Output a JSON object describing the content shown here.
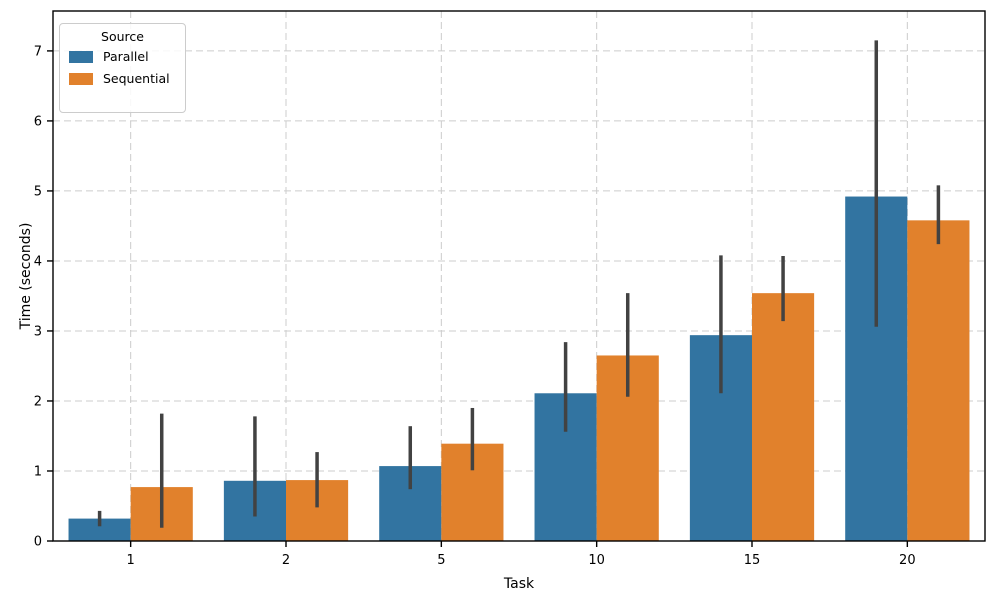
{
  "figure": {
    "background": "#ffffff",
    "legend": {
      "title": "Source",
      "entries": [
        {
          "label": "Parallel",
          "color": "#3274a1"
        },
        {
          "label": "Sequential",
          "color": "#e1812c"
        }
      ]
    }
  },
  "chart_data": {
    "type": "bar",
    "title": "",
    "xlabel": "Task",
    "ylabel": "Time (seconds)",
    "categories": [
      "1",
      "2",
      "5",
      "10",
      "15",
      "20"
    ],
    "series": [
      {
        "name": "Parallel",
        "color": "#3274a1",
        "values": [
          0.32,
          0.86,
          1.07,
          2.11,
          2.94,
          4.92
        ],
        "ci_low": [
          0.21,
          0.35,
          0.74,
          1.56,
          2.11,
          3.06
        ],
        "ci_high": [
          0.43,
          1.78,
          1.64,
          2.84,
          4.08,
          7.15
        ]
      },
      {
        "name": "Sequential",
        "color": "#e1812c",
        "values": [
          0.77,
          0.87,
          1.39,
          2.65,
          3.54,
          4.58
        ],
        "ci_low": [
          0.19,
          0.48,
          1.01,
          2.06,
          3.14,
          4.24
        ],
        "ci_high": [
          1.82,
          1.27,
          1.9,
          3.54,
          4.07,
          5.08
        ]
      }
    ],
    "ylim": [
      0,
      7.57
    ],
    "yticks": [
      0,
      1,
      2,
      3,
      4,
      5,
      6,
      7
    ],
    "grid": true,
    "grid_style": "dashed",
    "grid_color": "#cccccc",
    "error_bar_color": "#424242",
    "spine_color": "#000000",
    "legend_position": "upper left",
    "bar_group_total_width": 0.8
  }
}
